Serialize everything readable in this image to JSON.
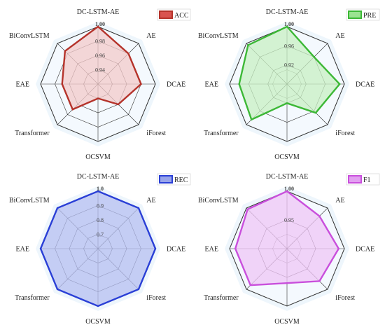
{
  "chart_data": [
    {
      "type": "radar",
      "categories": [
        "DC-LSTM-AE",
        "AE",
        "DCAE",
        "iForest",
        "OCSVM",
        "Transformer",
        "EAE",
        "BiConvLSTM"
      ],
      "series": [
        {
          "name": "ACC",
          "values": [
            1.0,
            0.98,
            0.98,
            0.96,
            0.94,
            0.97,
            0.97,
            0.985
          ]
        }
      ],
      "ticks": [
        "0.94",
        "0.96",
        "0.98",
        "1.00"
      ],
      "rlim": [
        0.92,
        1.0
      ],
      "line_color": "#b5332b",
      "fill_color": "#f3c9c9",
      "legend_fill": "#d9534f",
      "legend_placement": "top-right"
    },
    {
      "type": "radar",
      "categories": [
        "DC-LSTM-AE",
        "AE",
        "DCAE",
        "iForest",
        "OCSVM",
        "Transformer",
        "EAE",
        "BiConvLSTM"
      ],
      "series": [
        {
          "name": "PRE",
          "values": [
            1.0,
            0.96,
            0.99,
            0.965,
            0.92,
            0.985,
            0.98,
            0.995
          ]
        }
      ],
      "ticks": [
        "0.92",
        "0.96",
        "1.00"
      ],
      "rlim": [
        0.88,
        1.0
      ],
      "line_color": "#3cb836",
      "fill_color": "#c8efc3",
      "legend_fill": "#9be391",
      "legend_placement": "top-right"
    },
    {
      "type": "radar",
      "categories": [
        "DC-LSTM-AE",
        "AE",
        "DCAE",
        "iForest",
        "OCSVM",
        "Transformer",
        "EAE",
        "BiConvLSTM"
      ],
      "series": [
        {
          "name": "REC",
          "values": [
            1.0,
            1.0,
            1.0,
            1.0,
            1.0,
            1.0,
            1.0,
            1.0
          ]
        }
      ],
      "ticks": [
        "0.7",
        "0.8",
        "0.9",
        "1.0"
      ],
      "rlim": [
        0.6,
        1.0
      ],
      "line_color": "#2a3fd6",
      "fill_color": "#b4bef0",
      "legend_fill": "#98a4ea",
      "legend_placement": "top-right"
    },
    {
      "type": "radar",
      "categories": [
        "DC-LSTM-AE",
        "AE",
        "DCAE",
        "iForest",
        "OCSVM",
        "Transformer",
        "EAE",
        "BiConvLSTM"
      ],
      "series": [
        {
          "name": "F1",
          "values": [
            1.0,
            0.98,
            0.99,
            0.98,
            0.96,
            0.99,
            0.99,
            0.997
          ]
        }
      ],
      "ticks": [
        "0.95",
        "1.00"
      ],
      "rlim": [
        0.9,
        1.0
      ],
      "line_color": "#c94fdc",
      "fill_color": "#efc5f5",
      "legend_fill": "#e29ff0",
      "legend_placement": "top-right"
    }
  ]
}
